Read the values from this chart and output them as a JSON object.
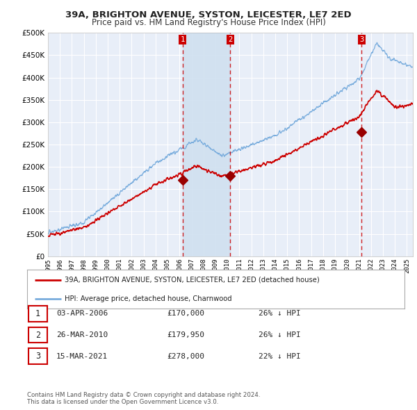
{
  "title": "39A, BRIGHTON AVENUE, SYSTON, LEICESTER, LE7 2ED",
  "subtitle": "Price paid vs. HM Land Registry's House Price Index (HPI)",
  "ylim": [
    0,
    500000
  ],
  "yticks": [
    0,
    50000,
    100000,
    150000,
    200000,
    250000,
    300000,
    350000,
    400000,
    450000,
    500000
  ],
  "ytick_labels": [
    "£0",
    "£50K",
    "£100K",
    "£150K",
    "£200K",
    "£250K",
    "£300K",
    "£350K",
    "£400K",
    "£450K",
    "£500K"
  ],
  "background_color": "#ffffff",
  "plot_bg_color": "#e8eef8",
  "grid_color": "#ffffff",
  "sale_color": "#cc0000",
  "hpi_color": "#7aaddd",
  "vline_color": "#cc0000",
  "shade_color": "#d0e0f0",
  "purchases": [
    {
      "date_x": 2006.25,
      "price": 170000,
      "label": "1",
      "date_str": "03-APR-2006",
      "price_str": "£170,000",
      "pct": "26% ↓ HPI"
    },
    {
      "date_x": 2010.23,
      "price": 179950,
      "label": "2",
      "date_str": "26-MAR-2010",
      "price_str": "£179,950",
      "pct": "26% ↓ HPI"
    },
    {
      "date_x": 2021.21,
      "price": 278000,
      "label": "3",
      "date_str": "15-MAR-2021",
      "price_str": "£278,000",
      "pct": "22% ↓ HPI"
    }
  ],
  "legend_sale_label": "39A, BRIGHTON AVENUE, SYSTON, LEICESTER, LE7 2ED (detached house)",
  "legend_hpi_label": "HPI: Average price, detached house, Charnwood",
  "footnote": "Contains HM Land Registry data © Crown copyright and database right 2024.\nThis data is licensed under the Open Government Licence v3.0.",
  "x_start": 1995.0,
  "x_end": 2025.5,
  "xtick_years": [
    1995,
    1996,
    1997,
    1998,
    1999,
    2000,
    2001,
    2002,
    2003,
    2004,
    2005,
    2006,
    2007,
    2008,
    2009,
    2010,
    2011,
    2012,
    2013,
    2014,
    2015,
    2016,
    2017,
    2018,
    2019,
    2020,
    2021,
    2022,
    2023,
    2024,
    2025
  ]
}
